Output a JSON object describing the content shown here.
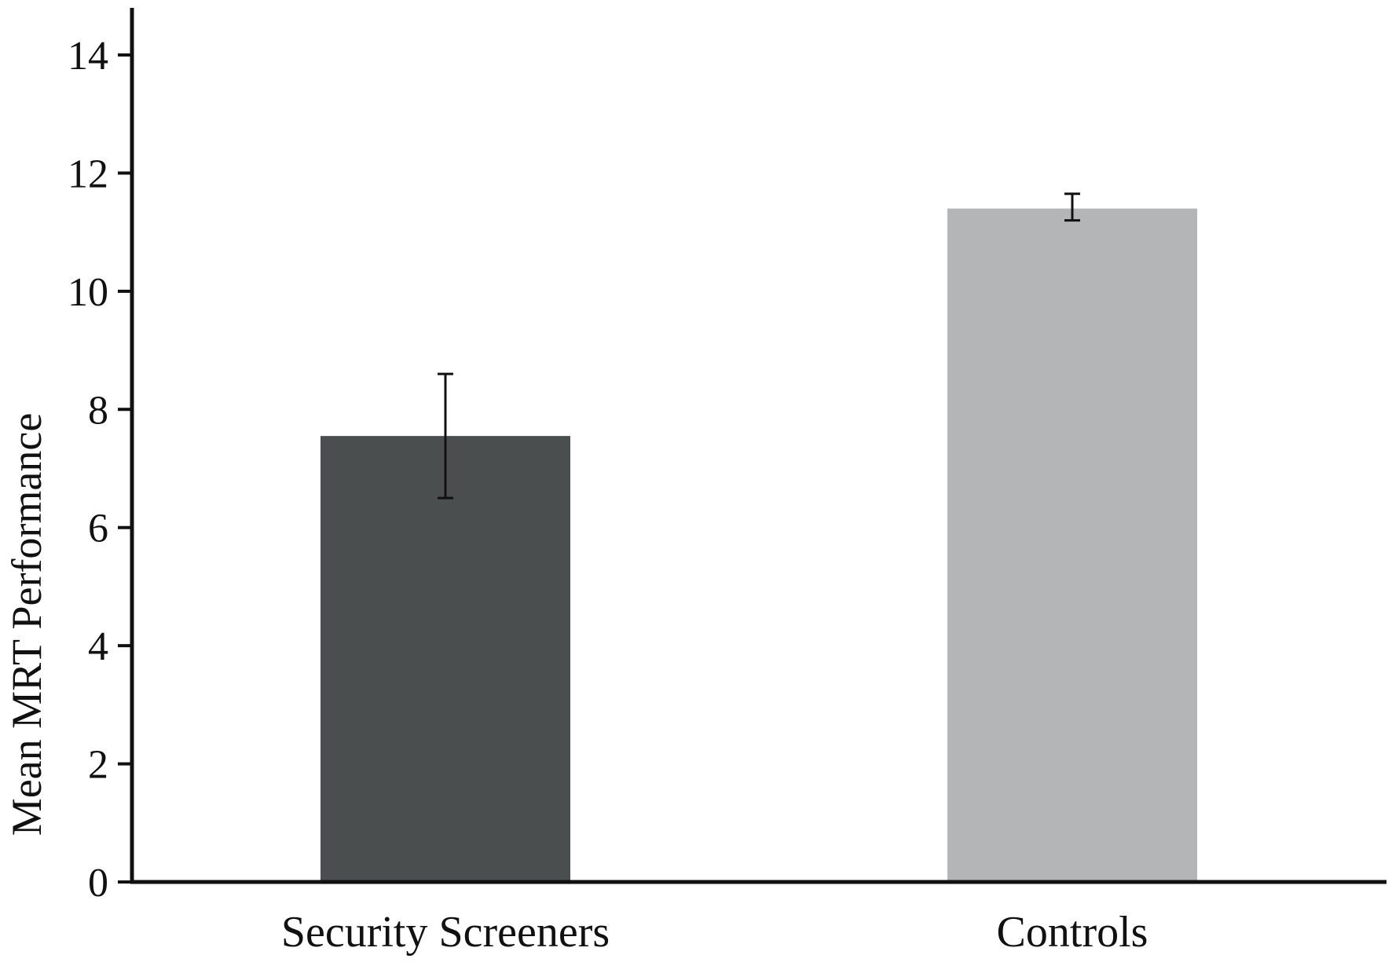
{
  "chart_data": {
    "type": "bar",
    "title": "",
    "xlabel": "",
    "ylabel": "Mean MRT Performance",
    "ylim": [
      0,
      14
    ],
    "yticks": [
      0,
      2,
      4,
      6,
      8,
      10,
      12,
      14
    ],
    "ytick_labels": [
      "0",
      "2",
      "4",
      "6",
      "8",
      "10",
      "12",
      "14"
    ],
    "categories": [
      "Security Screeners",
      "Controls"
    ],
    "values": [
      7.55,
      11.4
    ],
    "error_low": [
      6.5,
      11.2
    ],
    "error_high": [
      8.6,
      11.65
    ],
    "colors": [
      "#4b4e4f",
      "#b4b5b6"
    ],
    "grid": false,
    "legend": "none"
  }
}
